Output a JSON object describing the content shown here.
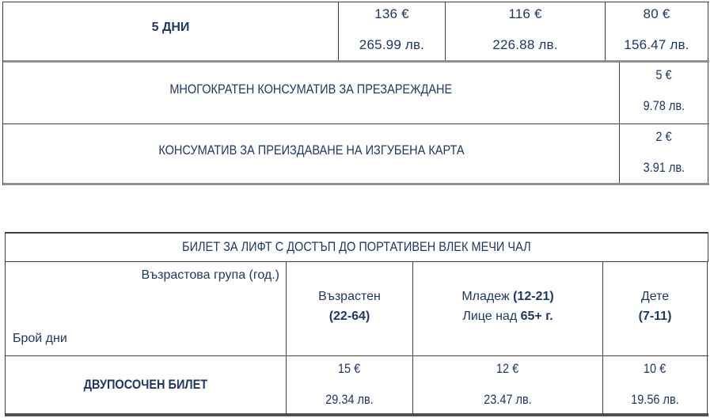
{
  "colors": {
    "text_navy": "#1f3864",
    "border_thin": "#3f3f3f",
    "border_thick_gray": "#8f8f8f",
    "border_bottom_dark": "#4f4f4f"
  },
  "table1": {
    "row_5days": {
      "label": "5 ДНИ",
      "prices": [
        {
          "eur": "136 €",
          "bgn": "265.99 лв."
        },
        {
          "eur": "116 €",
          "bgn": "226.88 лв."
        },
        {
          "eur": "80 €",
          "bgn": "156.47 лв."
        }
      ]
    },
    "row_refill": {
      "label": "МНОГОКРАТЕН КОНСУМАТИВ ЗА ПРЕЗАРЕЖДАНЕ",
      "eur": "5 €",
      "bgn": "9.78 лв."
    },
    "row_reissue": {
      "label": "КОНСУМАТИВ ЗА ПРЕИЗДАВАНЕ НА ИЗГУБЕНА КАРТА",
      "eur": "2 €",
      "bgn": "3.91 лв."
    }
  },
  "table2": {
    "title": "БИЛЕТ ЗА ЛИФТ С ДОСТЪП ДО ПОРТАТИВЕН ВЛЕК МЕЧИ ЧАЛ",
    "header": {
      "age_group_label": "Възрастова група (год.)",
      "days_label": "Брой дни",
      "adult_line1": "Възрастен",
      "adult_line2": "(22-64)",
      "youth_line1_normal": "Младеж ",
      "youth_line1_bold": "(12-21)",
      "youth_line2_normal": "Лице над ",
      "youth_line2_bold": "65+ г.",
      "child_line1": "Дете",
      "child_line2": "(7-11)"
    },
    "row_roundtrip": {
      "label": "ДВУПОСОЧЕН БИЛЕТ",
      "prices": [
        {
          "eur": "15 €",
          "bgn": "29.34 лв."
        },
        {
          "eur": "12 €",
          "bgn": "23.47 лв."
        },
        {
          "eur": "10 €",
          "bgn": "19.56 лв."
        }
      ]
    }
  }
}
